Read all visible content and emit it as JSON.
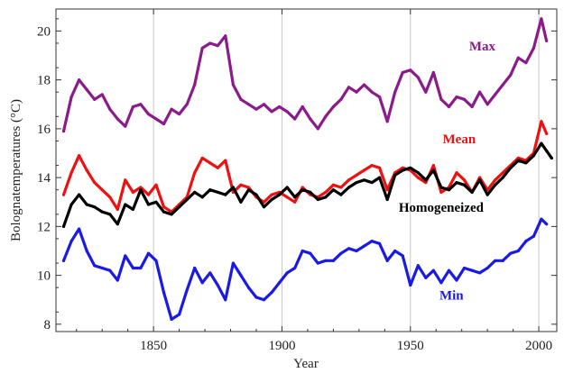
{
  "chart_data": {
    "type": "line",
    "xlabel": "Year",
    "ylabel": "Bolognatemperatures (°C)",
    "xlim": [
      1812,
      2007
    ],
    "ylim": [
      7.7,
      20.9
    ],
    "xticks": [
      1850,
      1900,
      1950,
      2000
    ],
    "yticks": [
      8,
      10,
      12,
      14,
      16,
      18,
      20
    ],
    "vertical_gridlines_at": [
      1850,
      1900,
      1950,
      2000
    ],
    "legend": "inline labels next to series",
    "series": [
      {
        "name": "Max",
        "color": "#8b1a8b",
        "x": [
          1815,
          1818,
          1821,
          1824,
          1827,
          1830,
          1833,
          1836,
          1839,
          1842,
          1845,
          1848,
          1851,
          1854,
          1857,
          1860,
          1863,
          1866,
          1869,
          1872,
          1875,
          1878,
          1881,
          1884,
          1887,
          1890,
          1893,
          1896,
          1899,
          1902,
          1905,
          1908,
          1911,
          1914,
          1917,
          1920,
          1923,
          1926,
          1929,
          1932,
          1935,
          1938,
          1941,
          1944,
          1947,
          1950,
          1953,
          1956,
          1959,
          1962,
          1965,
          1968,
          1971,
          1974,
          1977,
          1980,
          1983,
          1986,
          1989,
          1992,
          1995,
          1998,
          2001,
          2003
        ],
        "y": [
          15.9,
          17.3,
          18.0,
          17.6,
          17.2,
          17.4,
          16.8,
          16.4,
          16.1,
          16.9,
          17.0,
          16.6,
          16.4,
          16.2,
          16.8,
          16.6,
          17.0,
          17.8,
          19.3,
          19.5,
          19.4,
          19.8,
          17.8,
          17.2,
          17.0,
          16.8,
          17.0,
          16.7,
          16.9,
          16.7,
          16.4,
          16.9,
          16.4,
          16.0,
          16.5,
          16.9,
          17.2,
          17.7,
          17.5,
          17.8,
          17.5,
          17.3,
          16.3,
          17.5,
          18.3,
          18.4,
          18.1,
          17.5,
          18.3,
          17.2,
          16.9,
          17.3,
          17.2,
          16.9,
          17.5,
          17.0,
          17.4,
          17.8,
          18.2,
          18.9,
          18.7,
          19.3,
          20.5,
          19.6
        ]
      },
      {
        "name": "Mean",
        "color": "#ee1111",
        "x": [
          1815,
          1818,
          1821,
          1824,
          1827,
          1830,
          1833,
          1836,
          1839,
          1842,
          1845,
          1848,
          1851,
          1854,
          1857,
          1860,
          1863,
          1866,
          1869,
          1872,
          1875,
          1878,
          1881,
          1884,
          1887,
          1890,
          1893,
          1896,
          1899,
          1902,
          1905,
          1908,
          1911,
          1914,
          1917,
          1920,
          1923,
          1926,
          1929,
          1932,
          1935,
          1938,
          1941,
          1944,
          1947,
          1950,
          1953,
          1956,
          1959,
          1962,
          1965,
          1968,
          1971,
          1974,
          1977,
          1980,
          1983,
          1986,
          1989,
          1992,
          1995,
          1998,
          2001,
          2003
        ],
        "y": [
          13.3,
          14.2,
          14.9,
          14.3,
          13.8,
          13.5,
          13.2,
          12.7,
          13.9,
          13.4,
          13.6,
          13.3,
          13.7,
          12.8,
          12.6,
          12.9,
          13.2,
          14.2,
          14.8,
          14.6,
          14.4,
          14.7,
          13.4,
          13.7,
          13.6,
          13.2,
          13.0,
          13.3,
          13.4,
          13.2,
          13.0,
          13.6,
          13.3,
          13.2,
          13.4,
          13.7,
          13.6,
          13.9,
          14.1,
          14.3,
          14.5,
          14.4,
          13.5,
          14.2,
          14.4,
          14.3,
          14.0,
          13.8,
          14.5,
          13.4,
          13.6,
          14.2,
          13.9,
          13.4,
          14.0,
          13.5,
          13.9,
          14.2,
          14.5,
          14.8,
          14.7,
          15.0,
          16.3,
          15.8
        ]
      },
      {
        "name": "Homogeneized",
        "color": "#000000",
        "x": [
          1815,
          1818,
          1821,
          1824,
          1827,
          1830,
          1833,
          1836,
          1839,
          1842,
          1845,
          1848,
          1851,
          1854,
          1857,
          1860,
          1863,
          1866,
          1869,
          1872,
          1875,
          1878,
          1881,
          1884,
          1887,
          1890,
          1893,
          1896,
          1899,
          1902,
          1905,
          1908,
          1911,
          1914,
          1917,
          1920,
          1923,
          1926,
          1929,
          1932,
          1935,
          1938,
          1941,
          1944,
          1947,
          1950,
          1953,
          1956,
          1959,
          1962,
          1965,
          1968,
          1971,
          1974,
          1977,
          1980,
          1983,
          1986,
          1989,
          1992,
          1995,
          1998,
          2001,
          2003,
          2005
        ],
        "y": [
          12.0,
          12.9,
          13.3,
          12.9,
          12.8,
          12.6,
          12.5,
          12.1,
          12.9,
          12.7,
          13.5,
          12.9,
          13.0,
          12.6,
          12.5,
          12.8,
          13.1,
          13.4,
          13.2,
          13.5,
          13.4,
          13.3,
          13.6,
          13.0,
          13.5,
          13.3,
          12.8,
          13.1,
          13.3,
          13.6,
          13.2,
          13.5,
          13.4,
          13.1,
          13.2,
          13.5,
          13.3,
          13.6,
          13.8,
          13.9,
          13.8,
          14.0,
          13.1,
          14.1,
          14.3,
          14.4,
          14.2,
          13.9,
          14.3,
          13.6,
          13.5,
          13.8,
          13.7,
          13.4,
          13.9,
          13.3,
          13.7,
          14.0,
          14.4,
          14.7,
          14.6,
          14.9,
          15.4,
          15.1,
          14.8
        ]
      },
      {
        "name": "Min",
        "color": "#1a1ae6",
        "x": [
          1815,
          1818,
          1821,
          1824,
          1827,
          1830,
          1833,
          1836,
          1839,
          1842,
          1845,
          1848,
          1851,
          1854,
          1857,
          1860,
          1863,
          1866,
          1869,
          1872,
          1875,
          1878,
          1881,
          1884,
          1887,
          1890,
          1893,
          1896,
          1899,
          1902,
          1905,
          1908,
          1911,
          1914,
          1917,
          1920,
          1923,
          1926,
          1929,
          1932,
          1935,
          1938,
          1941,
          1944,
          1947,
          1950,
          1953,
          1956,
          1959,
          1962,
          1965,
          1968,
          1971,
          1974,
          1977,
          1980,
          1983,
          1986,
          1989,
          1992,
          1995,
          1998,
          2001,
          2003
        ],
        "y": [
          10.6,
          11.4,
          11.9,
          11.0,
          10.4,
          10.3,
          10.2,
          9.8,
          10.8,
          10.3,
          10.3,
          10.9,
          10.6,
          9.3,
          8.2,
          8.4,
          9.4,
          10.3,
          9.7,
          10.1,
          9.6,
          9.0,
          10.5,
          10.0,
          9.5,
          9.1,
          9.0,
          9.3,
          9.7,
          10.1,
          10.3,
          11.0,
          10.9,
          10.5,
          10.6,
          10.6,
          10.9,
          11.1,
          11.0,
          11.2,
          11.4,
          11.3,
          10.6,
          11.0,
          10.8,
          9.6,
          10.4,
          9.9,
          10.2,
          9.7,
          10.2,
          9.8,
          10.3,
          10.2,
          10.1,
          10.3,
          10.6,
          10.6,
          10.9,
          11.0,
          11.4,
          11.6,
          12.3,
          12.1
        ]
      }
    ]
  }
}
